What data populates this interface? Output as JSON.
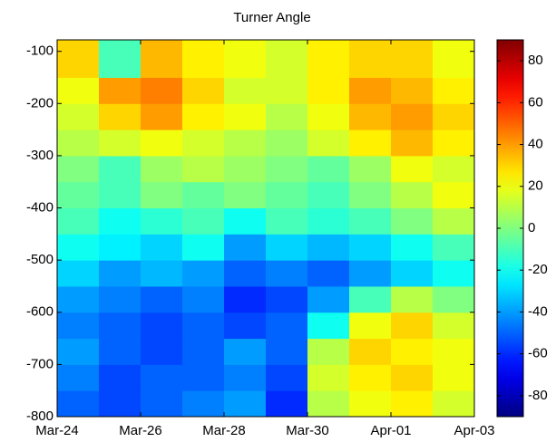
{
  "chart_data": {
    "type": "heatmap",
    "title": "Turner Angle",
    "xlim": [
      0,
      10
    ],
    "xticks": [
      {
        "value": 0,
        "label": "Mar-24"
      },
      {
        "value": 2,
        "label": "Mar-26"
      },
      {
        "value": 4,
        "label": "Mar-28"
      },
      {
        "value": 6,
        "label": "Mar-30"
      },
      {
        "value": 8,
        "label": "Apr-01"
      },
      {
        "value": 10,
        "label": "Apr-03"
      }
    ],
    "ylim": [
      -800,
      -78
    ],
    "yticks": [
      -800,
      -700,
      -600,
      -500,
      -400,
      -300,
      -200,
      -100
    ],
    "x": [
      0.5,
      1.5,
      2.5,
      3.5,
      4.5,
      5.5,
      6.5,
      7.5,
      8.5,
      9.5
    ],
    "y": [
      -775,
      -725,
      -675,
      -625,
      -575,
      -525,
      -475,
      -425,
      -375,
      -325,
      -275,
      -225,
      -175,
      -125
    ],
    "z": [
      [
        -50,
        -55,
        -50,
        -45,
        -40,
        -60,
        10,
        20,
        25,
        15
      ],
      [
        -45,
        -55,
        -50,
        -50,
        -45,
        -55,
        15,
        25,
        30,
        20
      ],
      [
        -40,
        -50,
        -55,
        -50,
        -40,
        -50,
        10,
        30,
        25,
        20
      ],
      [
        -45,
        -50,
        -55,
        -50,
        -55,
        -50,
        -20,
        20,
        30,
        15
      ],
      [
        -40,
        -45,
        -50,
        -45,
        -60,
        -55,
        -40,
        -10,
        10,
        0
      ],
      [
        -30,
        -40,
        -35,
        -40,
        -50,
        -45,
        -50,
        -40,
        -30,
        -20
      ],
      [
        -20,
        -25,
        -30,
        -20,
        -40,
        -30,
        -35,
        -30,
        -20,
        -10
      ],
      [
        -10,
        -20,
        -15,
        -10,
        -20,
        -10,
        -15,
        -10,
        0,
        10
      ],
      [
        -5,
        -10,
        0,
        -5,
        0,
        -5,
        -10,
        0,
        10,
        20
      ],
      [
        0,
        -10,
        5,
        10,
        5,
        0,
        -5,
        5,
        20,
        15
      ],
      [
        10,
        15,
        20,
        15,
        10,
        5,
        15,
        25,
        35,
        25
      ],
      [
        15,
        30,
        40,
        25,
        20,
        10,
        20,
        35,
        40,
        30
      ],
      [
        20,
        40,
        45,
        30,
        15,
        15,
        25,
        40,
        35,
        25
      ],
      [
        30,
        -10,
        35,
        25,
        20,
        15,
        25,
        30,
        30,
        20
      ]
    ],
    "clim": [
      -90,
      90
    ],
    "cticks": [
      -80,
      -60,
      -40,
      -20,
      0,
      20,
      40,
      60,
      80
    ],
    "colormap": "jet"
  }
}
